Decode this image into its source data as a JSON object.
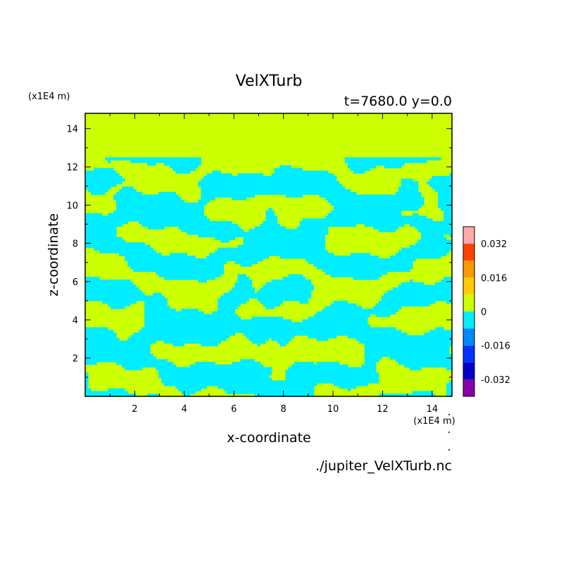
{
  "chart_data": {
    "type": "heatmap",
    "title": "VelXTurb",
    "subtitle": "t=7680.0 y=0.0",
    "xlabel": "x-coordinate",
    "ylabel": "z-coordinate",
    "x_unit_label": "(x1E4 m)",
    "y_unit_label": "(x1E4 m)",
    "source_label": "./jupiter_VelXTurb.nc",
    "xlim": [
      0,
      14.8
    ],
    "ylim": [
      0,
      14.8
    ],
    "x_ticks": [
      2,
      4,
      6,
      8,
      10,
      12,
      14
    ],
    "x_tick_labels": [
      "2",
      "4",
      "6",
      "8",
      "10",
      "12",
      "14"
    ],
    "y_ticks": [
      2,
      4,
      6,
      8,
      10,
      12,
      14
    ],
    "y_tick_labels": [
      "2",
      "4",
      "6",
      "8",
      "10",
      "12",
      "14"
    ],
    "turbulent_layer_top": 12.5,
    "quiescent_value": 0.004,
    "colorbar": {
      "levels": [
        -0.04,
        -0.032,
        -0.024,
        -0.016,
        -0.008,
        0,
        0.008,
        0.016,
        0.024,
        0.032,
        0.04
      ],
      "colors": [
        "#8800aa",
        "#0000cc",
        "#0033ff",
        "#0088ff",
        "#00eeff",
        "#ccff00",
        "#ffcc00",
        "#ff9900",
        "#ff4400",
        "#ffaaaa"
      ],
      "ticks": [
        -0.032,
        -0.016,
        0,
        0.016,
        0.032
      ],
      "tick_labels": [
        "-0.032",
        "-0.016",
        "0",
        "0.016",
        "0.032"
      ]
    },
    "field_description_colors": {
      "negative": "#00eeff",
      "positive": "#ccff00"
    }
  }
}
